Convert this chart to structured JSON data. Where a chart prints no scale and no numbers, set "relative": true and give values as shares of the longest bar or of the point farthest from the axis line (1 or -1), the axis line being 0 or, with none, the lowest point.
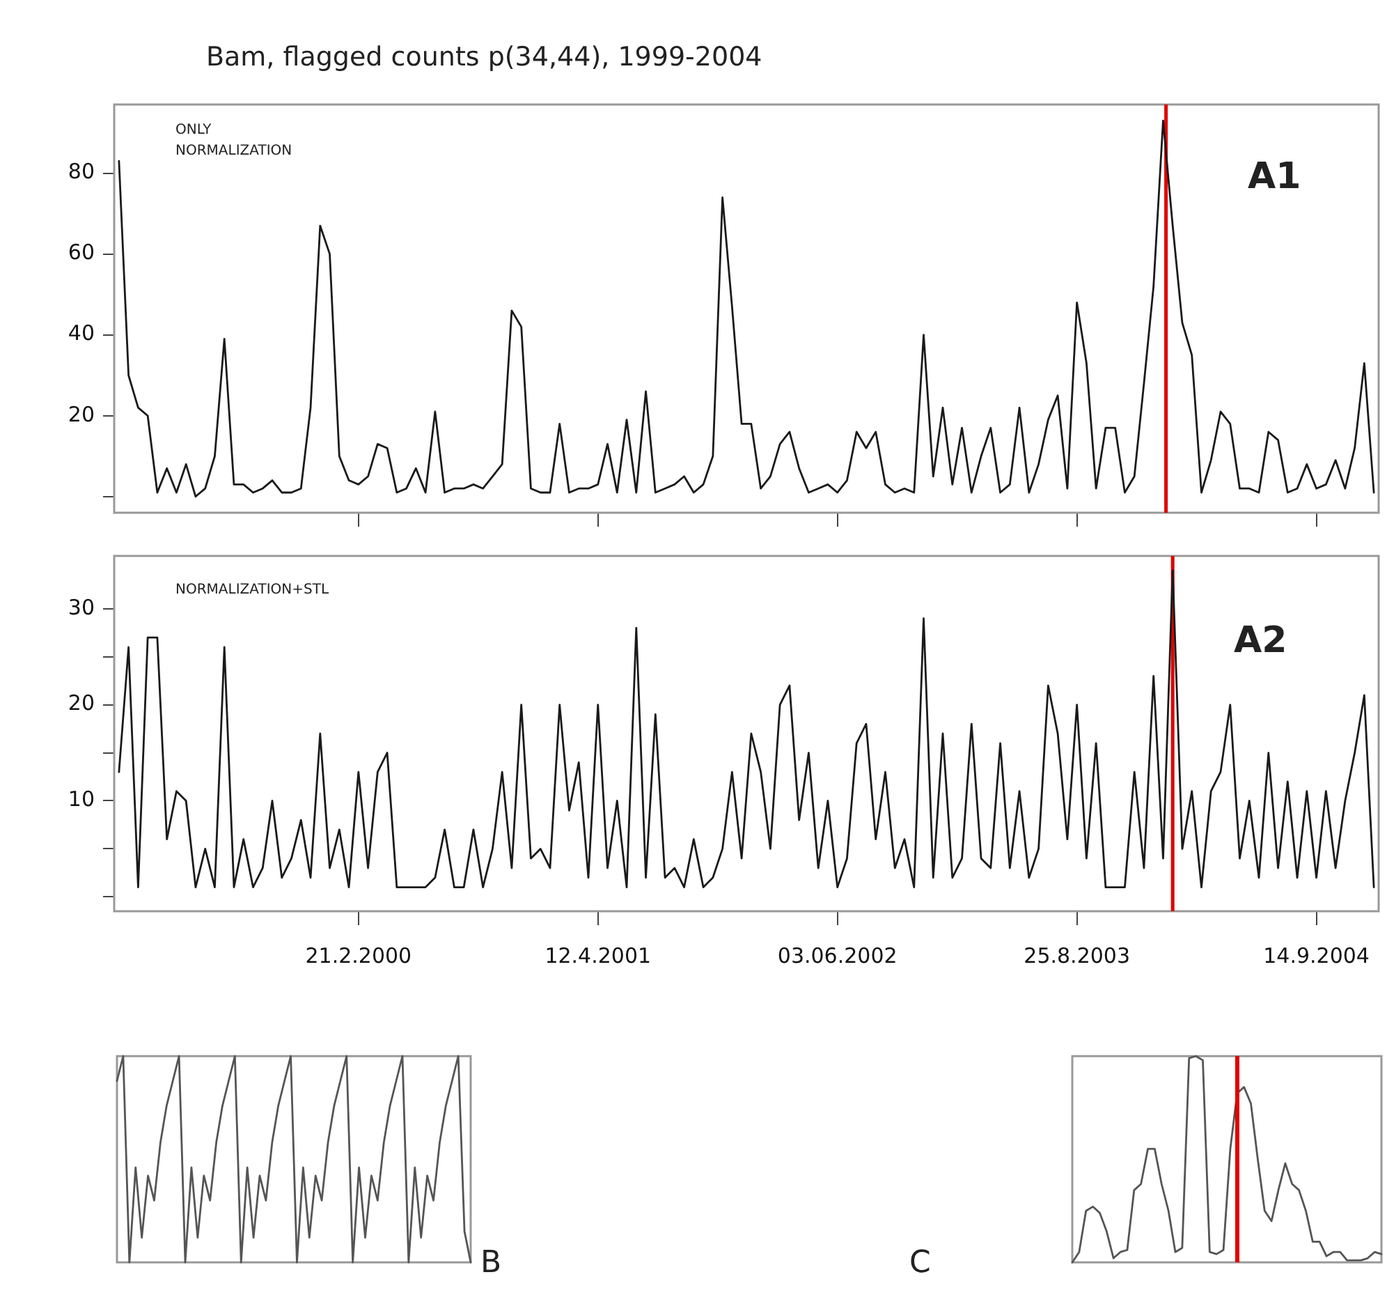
{
  "chart_data": [
    {
      "type": "line",
      "title": "Bam, flagged counts p(34,44), 1999-2004",
      "annotations": [
        "ONLY NORMALIZATION",
        "A1"
      ],
      "categories": [
        null,
        null,
        null,
        null,
        null,
        null,
        null,
        null,
        null,
        null,
        null,
        null,
        null,
        null,
        null,
        null,
        null,
        null,
        null,
        null,
        null,
        null,
        null,
        null,
        null,
        "21.2.2000",
        null,
        null,
        null,
        null,
        null,
        null,
        null,
        null,
        null,
        null,
        null,
        null,
        null,
        null,
        null,
        null,
        null,
        null,
        null,
        null,
        null,
        null,
        null,
        null,
        "12.4.2001",
        null,
        null,
        null,
        null,
        null,
        null,
        null,
        null,
        null,
        null,
        null,
        null,
        null,
        null,
        null,
        null,
        null,
        null,
        null,
        null,
        null,
        null,
        null,
        null,
        "03.06.2002",
        null,
        null,
        null,
        null,
        null,
        null,
        null,
        null,
        null,
        null,
        null,
        null,
        null,
        null,
        null,
        null,
        null,
        null,
        null,
        null,
        null,
        null,
        null,
        null,
        "25.8.2003",
        null,
        null,
        null,
        null,
        null,
        null,
        null,
        null,
        null,
        null,
        null,
        null,
        null,
        null,
        null,
        null,
        null,
        null,
        null,
        null,
        null,
        null,
        null,
        null,
        "14.9.2004",
        null,
        null,
        null,
        null,
        null,
        null
      ],
      "series": [
        {
          "color": "#1a1a1a",
          "values": [
            83,
            30,
            22,
            20,
            1,
            7,
            1,
            8,
            0,
            2,
            10,
            39,
            3,
            3,
            1,
            2,
            4,
            1,
            1,
            2,
            22,
            67,
            60,
            10,
            4,
            3,
            5,
            13,
            12,
            1,
            2,
            7,
            1,
            21,
            1,
            2,
            2,
            3,
            2,
            5,
            8,
            46,
            42,
            2,
            1,
            1,
            18,
            1,
            2,
            2,
            3,
            13,
            1,
            19,
            1,
            26,
            1,
            2,
            3,
            5,
            1,
            3,
            10,
            74,
            47,
            18,
            18,
            2,
            5,
            13,
            16,
            7,
            1,
            2,
            3,
            1,
            4,
            16,
            12,
            16,
            3,
            1,
            2,
            1,
            40,
            5,
            22,
            3,
            17,
            1,
            10,
            17,
            1,
            3,
            22,
            1,
            8,
            19,
            25,
            2,
            48,
            33,
            2,
            17,
            17,
            1,
            5,
            28,
            52,
            93,
            67,
            43,
            35,
            1,
            9,
            21,
            18,
            2,
            2,
            1,
            16,
            14,
            1,
            2,
            8,
            2,
            3,
            9,
            2,
            12,
            33,
            1
          ]
        }
      ],
      "ylim": [
        -4,
        97
      ],
      "yticks": [
        {
          "value": 0,
          "label": null
        },
        20,
        40,
        60,
        80
      ],
      "tick_labels": "y"
    },
    {
      "type": "line",
      "annotations": [
        "NORMALIZATION+STL",
        "A2"
      ],
      "categories": [
        null,
        null,
        null,
        null,
        null,
        null,
        null,
        null,
        null,
        null,
        null,
        null,
        null,
        null,
        null,
        null,
        null,
        null,
        null,
        null,
        null,
        null,
        null,
        null,
        null,
        "21.2.2000",
        null,
        null,
        null,
        null,
        null,
        null,
        null,
        null,
        null,
        null,
        null,
        null,
        null,
        null,
        null,
        null,
        null,
        null,
        null,
        null,
        null,
        null,
        null,
        null,
        "12.4.2001",
        null,
        null,
        null,
        null,
        null,
        null,
        null,
        null,
        null,
        null,
        null,
        null,
        null,
        null,
        null,
        null,
        null,
        null,
        null,
        null,
        null,
        null,
        null,
        null,
        "03.06.2002",
        null,
        null,
        null,
        null,
        null,
        null,
        null,
        null,
        null,
        null,
        null,
        null,
        null,
        null,
        null,
        null,
        null,
        null,
        null,
        null,
        null,
        null,
        null,
        null,
        "25.8.2003",
        null,
        null,
        null,
        null,
        null,
        null,
        null,
        null,
        null,
        null,
        null,
        null,
        null,
        null,
        null,
        null,
        null,
        null,
        null,
        null,
        null,
        null,
        null,
        null,
        "14.9.2004",
        null,
        null,
        null,
        null,
        null,
        null
      ],
      "series": [
        {
          "color": "#1a1a1a",
          "values": [
            13,
            26,
            1,
            27,
            27,
            6,
            11,
            10,
            1,
            5,
            1,
            26,
            1,
            6,
            1,
            3,
            10,
            2,
            4,
            8,
            2,
            17,
            3,
            7,
            1,
            13,
            3,
            13,
            15,
            1,
            1,
            1,
            1,
            2,
            7,
            1,
            1,
            7,
            1,
            5,
            13,
            3,
            20,
            4,
            5,
            3,
            20,
            9,
            14,
            2,
            20,
            3,
            10,
            1,
            28,
            2,
            19,
            2,
            3,
            1,
            6,
            1,
            2,
            5,
            13,
            4,
            17,
            13,
            5,
            20,
            22,
            8,
            15,
            3,
            10,
            1,
            4,
            16,
            18,
            6,
            13,
            3,
            6,
            1,
            29,
            2,
            17,
            2,
            4,
            18,
            4,
            3,
            16,
            3,
            11,
            2,
            5,
            22,
            17,
            6,
            20,
            4,
            16,
            1,
            1,
            1,
            13,
            3,
            23,
            4,
            34,
            5,
            11,
            1,
            11,
            13,
            20,
            4,
            10,
            2,
            15,
            3,
            12,
            2,
            11,
            2,
            11,
            3,
            10,
            15,
            21,
            1
          ]
        }
      ],
      "ylim": [
        -1.5,
        35.5
      ],
      "yticks": [
        {
          "value": 0,
          "label": null
        },
        {
          "value": 5,
          "label": null
        },
        10,
        {
          "value": 15,
          "label": null
        },
        20,
        {
          "value": 25,
          "label": null
        },
        30
      ]
    },
    {
      "type": "line",
      "relative": true,
      "annotations": [
        "B"
      ],
      "categories": [
        null,
        null,
        null,
        null,
        null,
        null,
        null,
        null,
        null,
        null,
        null,
        null,
        null,
        null,
        null,
        null,
        null,
        null,
        null,
        null,
        null,
        null,
        null,
        null,
        null,
        null,
        null,
        null,
        null,
        null,
        null,
        null,
        null,
        null,
        null,
        null,
        null,
        null,
        null,
        null,
        null,
        null,
        null,
        null,
        null,
        null,
        null,
        null,
        null,
        null,
        null,
        null,
        null,
        null,
        null,
        null,
        null,
        null
      ],
      "series": [
        {
          "color": "#555555",
          "values": [
            0.88,
            1,
            0,
            0.46,
            0.12,
            0.42,
            0.3,
            0.58,
            0.76,
            0.88,
            1,
            0,
            0.46,
            0.12,
            0.42,
            0.3,
            0.58,
            0.76,
            0.88,
            1,
            0,
            0.46,
            0.12,
            0.42,
            0.3,
            0.58,
            0.76,
            0.88,
            1,
            0,
            0.46,
            0.12,
            0.42,
            0.3,
            0.58,
            0.76,
            0.88,
            1,
            0,
            0.46,
            0.12,
            0.42,
            0.3,
            0.58,
            0.76,
            0.88,
            1,
            0,
            0.46,
            0.12,
            0.42,
            0.3,
            0.58,
            0.76,
            0.88,
            1,
            0.15,
            0
          ]
        }
      ]
    },
    {
      "type": "line",
      "relative": true,
      "annotations": [
        "C"
      ],
      "categories": [
        null,
        null,
        null,
        null,
        null,
        null,
        null,
        null,
        null,
        null,
        null,
        null,
        null,
        null,
        null,
        null,
        null,
        null,
        null,
        null,
        null,
        null,
        null,
        null,
        null,
        null,
        null,
        null,
        null,
        null,
        null,
        null,
        null,
        null,
        null,
        null,
        null,
        null,
        null,
        null,
        null,
        null,
        null,
        null,
        null,
        null
      ],
      "series": [
        {
          "color": "#555555",
          "values": [
            0,
            0.05,
            0.25,
            0.27,
            0.24,
            0.15,
            0.02,
            0.05,
            0.06,
            0.35,
            0.38,
            0.55,
            0.55,
            0.38,
            0.25,
            0.05,
            0.07,
            0.99,
            1,
            0.98,
            0.05,
            0.04,
            0.06,
            0.55,
            0.82,
            0.85,
            0.77,
            0.5,
            0.25,
            0.2,
            0.35,
            0.48,
            0.38,
            0.35,
            0.25,
            0.1,
            0.1,
            0.03,
            0.05,
            0.05,
            0.01,
            0.01,
            0.01,
            0.02,
            0.05,
            0.04
          ]
        }
      ]
    }
  ]
}
